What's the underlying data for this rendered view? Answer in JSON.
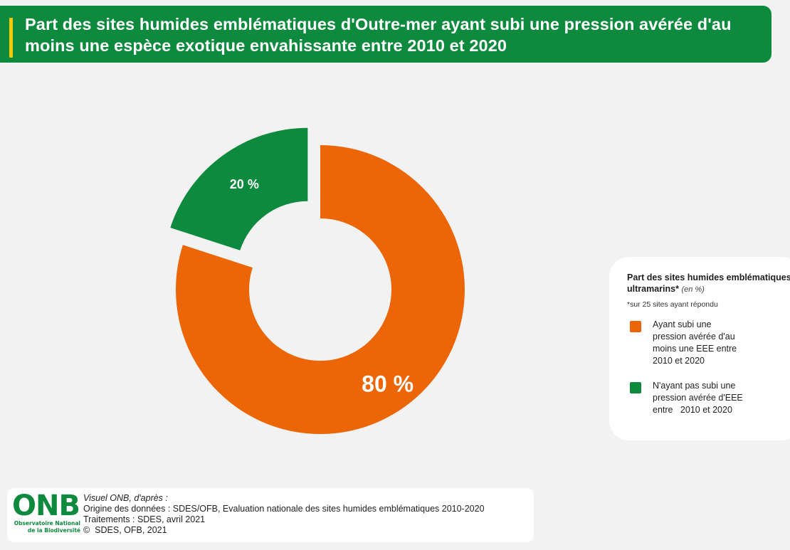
{
  "header": {
    "title": "Part des sites humides emblématiques d'Outre-mer ayant subi une pression avérée d'au moins une espèce exotique envahissante entre 2010 et 2020"
  },
  "chart_data": {
    "type": "pie",
    "title": "Part des sites humides emblématiques d'Outre-mer ayant subi une pression avérée d'au moins une espèce exotique envahissante entre 2010 et 2020",
    "donut": true,
    "slices": [
      {
        "label": "Ayant subi une pression avérée d'au moins une EEE entre 2010 et 2020",
        "value": 80,
        "value_label": "80 %",
        "color": "#ec6608"
      },
      {
        "label": "N'ayant pas subi une pression avérée d'EEE entre 2010 et 2020",
        "value": 20,
        "value_label": "20 %",
        "color": "#0e8a3e",
        "exploded": true
      }
    ],
    "legend_position": "right"
  },
  "legend": {
    "title": "Part des sites humides emblématiques ultramarins*",
    "unit": "(en %)",
    "note": "*sur 25 sites ayant répondu",
    "items": [
      {
        "lines": [
          "Ayant subi une",
          "pression avérée d'au",
          "moins une EEE entre",
          "2010 et 2020"
        ],
        "color": "#ec6608"
      },
      {
        "lines": [
          "N'ayant pas subi une",
          "pression avérée d'EEE",
          "entre   2010 et 2020"
        ],
        "color": "#0e8a3e"
      }
    ]
  },
  "footer": {
    "logo_letters": "ONB",
    "logo_line1": "Observatoire National",
    "logo_line2": "de la Biodiversité",
    "visuel": "Visuel ONB, d'après :",
    "origine": "Origine des données : SDES/OFB, Evaluation nationale des sites humides emblématiques 2010-2020",
    "traitements": "Traitements : SDES, avril 2021",
    "copyright": "©  SDES, OFB, 2021"
  }
}
